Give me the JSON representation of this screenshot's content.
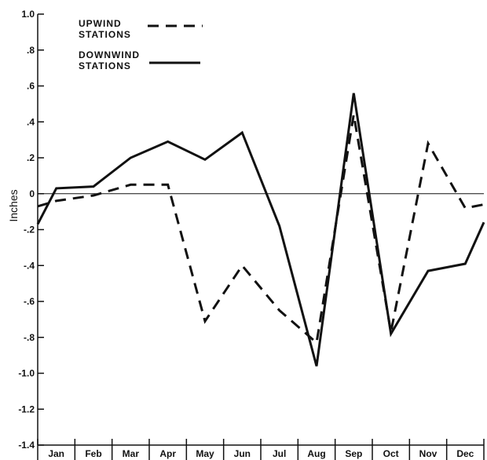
{
  "chart_data": {
    "type": "line",
    "ylabel": "Inches",
    "xlabel": "",
    "categories": [
      "Jan",
      "Feb",
      "Mar",
      "Apr",
      "May",
      "Jun",
      "Jul",
      "Aug",
      "Sep",
      "Oct",
      "Nov",
      "Dec"
    ],
    "ylim": [
      -1.4,
      1.0
    ],
    "yticks": [
      "1.0",
      ".8",
      ".6",
      ".4",
      ".2",
      "0",
      "-.2",
      "-.4",
      "-.6",
      "-.8",
      "-1.0",
      "-1.2",
      "-1.4"
    ],
    "zero_line": true,
    "grid": false,
    "legend_position": "top-left",
    "series": [
      {
        "name": "UPWIND STATIONS",
        "style": "dashed",
        "color": "#111111",
        "x": [
          0,
          0.5,
          1.5,
          2.5,
          3.5,
          4.5,
          5.5,
          6.5,
          7.5,
          8.5,
          9.5,
          10.5,
          11.5,
          12
        ],
        "values": [
          -0.07,
          -0.04,
          -0.01,
          0.05,
          0.05,
          -0.71,
          -0.4,
          -0.65,
          -0.83,
          0.44,
          -0.77,
          0.28,
          -0.08,
          -0.06
        ]
      },
      {
        "name": "DOWNWIND STATIONS",
        "style": "solid",
        "color": "#111111",
        "x": [
          0,
          0.5,
          1.5,
          2.5,
          3.5,
          4.5,
          5.5,
          6.5,
          7.5,
          8.5,
          9.5,
          10.5,
          11.5,
          12
        ],
        "values": [
          -0.17,
          0.03,
          0.04,
          0.2,
          0.29,
          0.19,
          0.34,
          -0.18,
          -0.96,
          0.56,
          -0.78,
          -0.43,
          -0.39,
          -0.16
        ]
      }
    ]
  }
}
